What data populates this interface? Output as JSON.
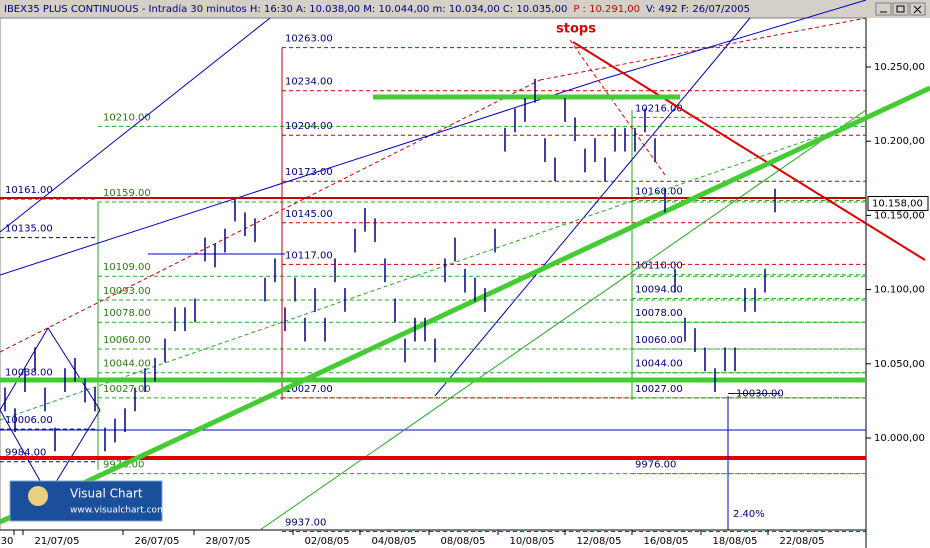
{
  "chart_data": {
    "type": "ohlc",
    "title_parts": [
      {
        "text": "IBEX35 PLUS CONTINUOUS - Intradía 30 minutos  H: 16:30  A: 10.038,00  M: 10.044,00  m: 10.034,00  C: 10.035,00",
        "color": "#000080"
      },
      {
        "text": "P : 10.291,00",
        "color": "#d00000"
      },
      {
        "text": "V: 492  F: 26/07/2005",
        "color": "#000080"
      }
    ],
    "annotation": "stops",
    "logo": {
      "name": "Visual Chart",
      "url": "www.visualchart.com"
    },
    "percent_label": "2.40%",
    "ylim": [
      9938,
      10283
    ],
    "yticks": [
      {
        "value": 10000,
        "label": "10.000,00"
      },
      {
        "value": 10050,
        "label": "10.050,00"
      },
      {
        "value": 10100,
        "label": "10.100,00"
      },
      {
        "value": 10150,
        "label": "10.150,00"
      },
      {
        "value": 10200,
        "label": "10.200,00"
      },
      {
        "value": 10250,
        "label": "10.250,00"
      }
    ],
    "last_price": {
      "value": 10158,
      "label": "10.158,00"
    },
    "categories": [
      "30",
      "21/07/05",
      "26/07/05",
      "28/07/05",
      "02/08/05",
      "04/08/05",
      "08/08/05",
      "10/08/05",
      "12/08/05",
      "16/08/05",
      "18/08/05",
      "22/08/05"
    ],
    "bar_color": "#000080",
    "high": [
      10034,
      10020,
      10047,
      10061,
      10034,
      10007,
      10047,
      10054,
      10040,
      10034,
      10007,
      10013,
      10020,
      10034,
      10047,
      10054,
      10067,
      10088,
      10088,
      10094,
      10135,
      10131,
      10141,
      10162,
      10152,
      10148,
      10108,
      10121,
      10088,
      10108,
      10081,
      10101,
      10081,
      10121,
      10101,
      10141,
      10155,
      10148,
      10121,
      10094,
      10067,
      10081,
      10081,
      10067,
      10121,
      10135,
      10114,
      10108,
      10101,
      10141,
      10209,
      10222,
      10229,
      10242,
      10202,
      10189,
      10229,
      10216,
      10195,
      10202,
      10189,
      10209,
      10209,
      10209,
      10222,
      10202,
      10168,
      10114,
      10081,
      10074,
      10061,
      10047,
      10061,
      10061,
      10101,
      10101,
      10114,
      10168
    ],
    "low": [
      10018,
      10004,
      10031,
      10045,
      10018,
      9991,
      10031,
      10038,
      10024,
      10018,
      9991,
      9997,
      10004,
      10018,
      10031,
      10038,
      10051,
      10072,
      10072,
      10078,
      10119,
      10115,
      10125,
      10146,
      10136,
      10132,
      10092,
      10105,
      10072,
      10092,
      10065,
      10085,
      10065,
      10105,
      10085,
      10125,
      10139,
      10132,
      10105,
      10078,
      10051,
      10065,
      10065,
      10051,
      10105,
      10119,
      10098,
      10092,
      10085,
      10125,
      10193,
      10206,
      10213,
      10226,
      10186,
      10173,
      10213,
      10200,
      10179,
      10186,
      10173,
      10193,
      10193,
      10193,
      10206,
      10186,
      10152,
      10098,
      10065,
      10058,
      10045,
      10031,
      10045,
      10045,
      10085,
      10085,
      10098,
      10152
    ],
    "levels_edge": [
      {
        "value": 10161,
        "label": "10161.00"
      },
      {
        "value": 10135,
        "label": "10135.00"
      },
      {
        "value": 10038,
        "label": "10038.00"
      },
      {
        "value": 10006,
        "label": "10006.00"
      },
      {
        "value": 9984,
        "label": "9984.00"
      }
    ],
    "levels_left": [
      {
        "value": 10210,
        "label": "10210.00"
      },
      {
        "value": 10159,
        "label": "10159.00"
      },
      {
        "value": 10109,
        "label": "10109.00"
      },
      {
        "value": 10093,
        "label": "10093.00"
      },
      {
        "value": 10078,
        "label": "10078.00"
      },
      {
        "value": 10060,
        "label": "10060.00"
      },
      {
        "value": 10044,
        "label": "10044.00"
      },
      {
        "value": 10027,
        "label": "10027.00"
      },
      {
        "value": 9976,
        "label": "9976.00"
      }
    ],
    "levels_mid": [
      {
        "value": 10263,
        "label": "10263.00"
      },
      {
        "value": 10234,
        "label": "10234.00"
      },
      {
        "value": 10204,
        "label": "10204.00"
      },
      {
        "value": 10173,
        "label": "10173.00"
      },
      {
        "value": 10145,
        "label": "10145.00"
      },
      {
        "value": 10117,
        "label": "10117.00"
      },
      {
        "value": 10027,
        "label": "10027.00"
      },
      {
        "value": 9937,
        "label": "9937.00"
      }
    ],
    "levels_right": [
      {
        "value": 10216,
        "label": "10216.00"
      },
      {
        "value": 10160,
        "label": "10160.00"
      },
      {
        "value": 10110,
        "label": "10110.00"
      },
      {
        "value": 10094,
        "label": "10094.00"
      },
      {
        "value": 10078,
        "label": "10078.00"
      },
      {
        "value": 10060,
        "label": "10060.00"
      },
      {
        "value": 10044,
        "label": "10044.00"
      },
      {
        "value": 10027,
        "label": "10027.00"
      },
      {
        "value": 9976,
        "label": "9976.00"
      }
    ],
    "low_marker": {
      "value": 10030,
      "label": "10030.00"
    }
  }
}
